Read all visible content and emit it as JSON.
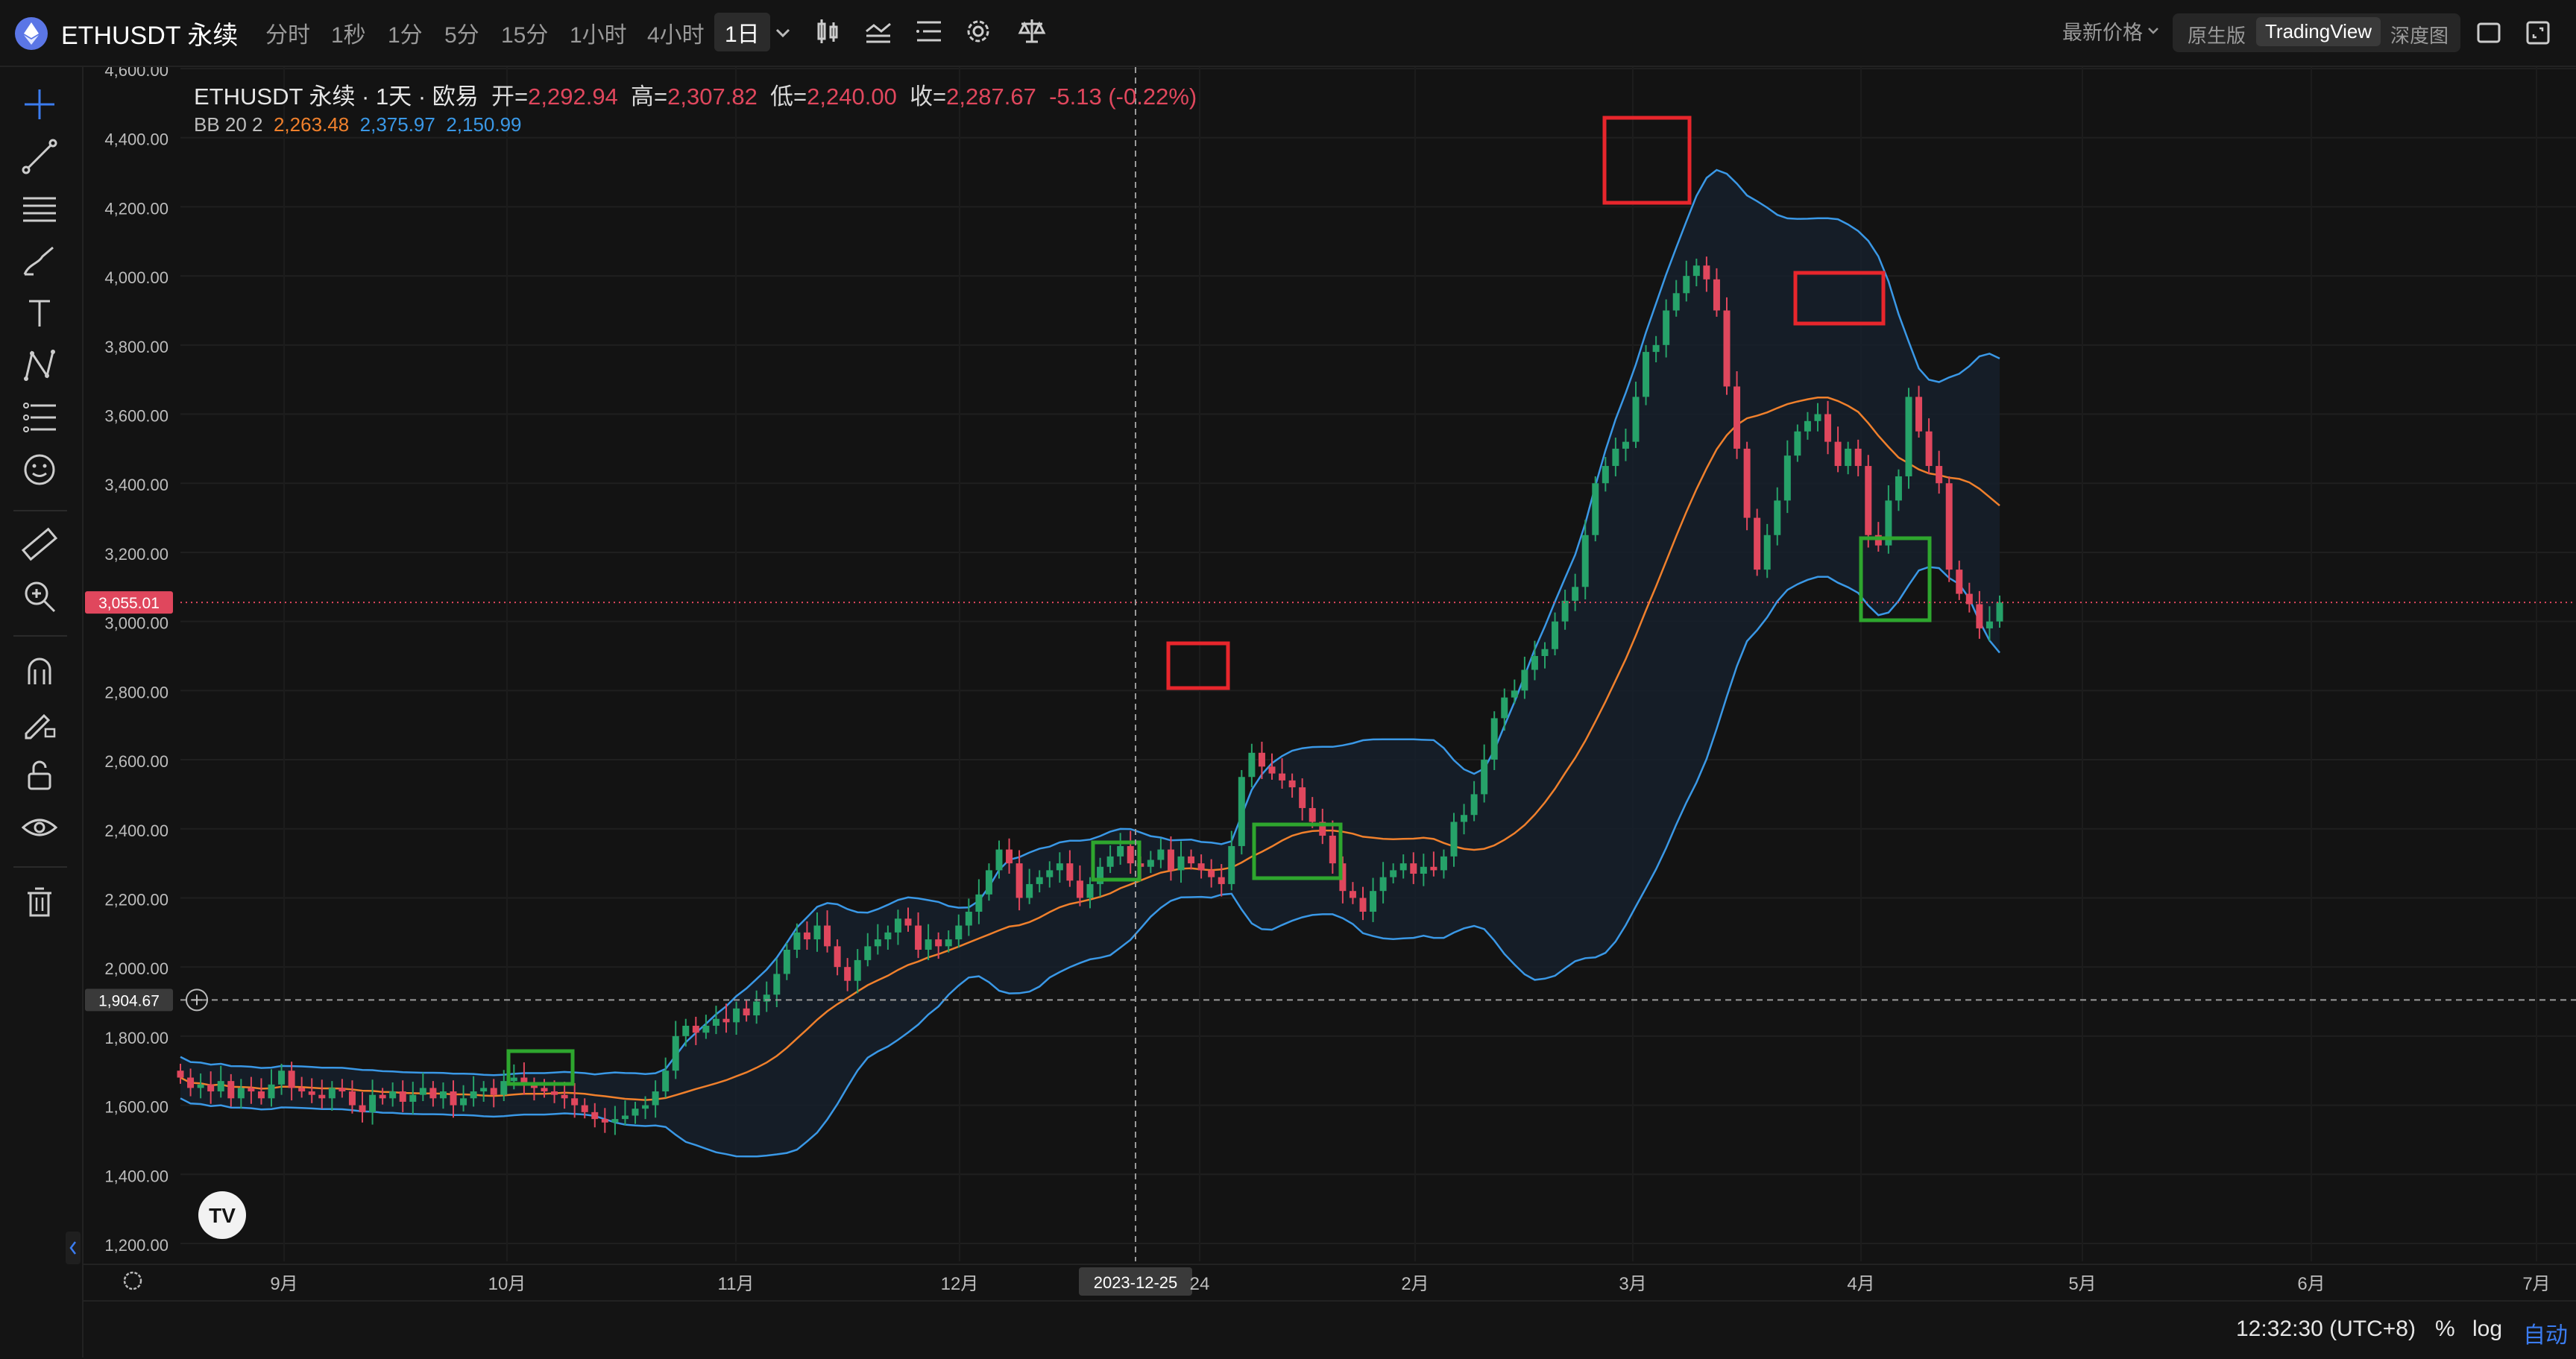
{
  "header": {
    "symbol": "ETHUSDT 永续",
    "timeframes": [
      "分时",
      "1秒",
      "1分",
      "5分",
      "15分",
      "1小时",
      "4小时",
      "1日"
    ],
    "active_timeframe": "1日",
    "price_type": "最新价格",
    "views": [
      "原生版",
      "TradingView",
      "深度图"
    ],
    "active_view": "TradingView"
  },
  "legend": {
    "title": "ETHUSDT 永续 · 1天 · 欧易",
    "open_label": "开=",
    "open": "2,292.94",
    "high_label": "高=",
    "high": "2,307.82",
    "low_label": "低=",
    "low": "2,240.00",
    "close_label": "收=",
    "close": "2,287.67",
    "change": "-5.13 (-0.22%)",
    "bb_label": "BB 20 2",
    "bb_mid": "2,263.48",
    "bb_upper": "2,375.97",
    "bb_lower": "2,150.99"
  },
  "price_axis": {
    "labels": [
      "4,600.00",
      "4,400.00",
      "4,200.00",
      "4,000.00",
      "3,800.00",
      "3,600.00",
      "3,400.00",
      "3,200.00",
      "3,000.00",
      "2,800.00",
      "2,600.00",
      "2,400.00",
      "2,200.00",
      "2,000.00",
      "1,800.00",
      "1,600.00",
      "1,400.00",
      "1,200.00"
    ],
    "last_price": "3,055.01",
    "crosshair_price": "1,904.67"
  },
  "time_axis": {
    "labels": [
      "9月",
      "10月",
      "11月",
      "12月",
      "24",
      "2月",
      "3月",
      "4月",
      "5月",
      "6月",
      "7月"
    ],
    "crosshair_date": "2023-12-25"
  },
  "bottom": {
    "clock": "12:32:30 (UTC+8)",
    "percent": "%",
    "log": "log",
    "auto": "自动"
  },
  "colors": {
    "up": "#26a269",
    "down": "#e0475d",
    "bb_mid": "#f0802c",
    "bb_band": "#3a98e6",
    "highlight_red": "#e8262c",
    "highlight_green": "#2ea62e",
    "accent_blue": "#3b7cf0"
  },
  "chart_data": {
    "type": "candlestick",
    "indicator": "BB 20 2",
    "ylim": [
      1200,
      4600
    ],
    "closes": [
      1680,
      1650,
      1660,
      1640,
      1670,
      1620,
      1650,
      1640,
      1620,
      1660,
      1700,
      1650,
      1640,
      1630,
      1620,
      1650,
      1640,
      1600,
      1580,
      1630,
      1620,
      1640,
      1610,
      1630,
      1650,
      1620,
      1640,
      1600,
      1620,
      1640,
      1650,
      1630,
      1670,
      1680,
      1660,
      1650,
      1640,
      1630,
      1620,
      1600,
      1580,
      1560,
      1550,
      1560,
      1570,
      1590,
      1600,
      1640,
      1700,
      1800,
      1830,
      1810,
      1830,
      1850,
      1840,
      1880,
      1860,
      1900,
      1920,
      1980,
      2050,
      2100,
      2080,
      2120,
      2060,
      2000,
      1960,
      2020,
      2060,
      2080,
      2100,
      2140,
      2120,
      2050,
      2080,
      2060,
      2080,
      2120,
      2160,
      2210,
      2280,
      2340,
      2300,
      2200,
      2240,
      2260,
      2280,
      2300,
      2250,
      2200,
      2240,
      2290,
      2320,
      2350,
      2300,
      2290,
      2310,
      2340,
      2280,
      2320,
      2300,
      2280,
      2260,
      2240,
      2350,
      2550,
      2620,
      2580,
      2560,
      2540,
      2520,
      2460,
      2420,
      2380,
      2300,
      2220,
      2200,
      2160,
      2220,
      2260,
      2280,
      2300,
      2270,
      2290,
      2280,
      2320,
      2420,
      2440,
      2500,
      2600,
      2720,
      2780,
      2800,
      2860,
      2900,
      2920,
      3000,
      3060,
      3100,
      3250,
      3400,
      3450,
      3500,
      3520,
      3650,
      3780,
      3800,
      3900,
      3950,
      4000,
      4030,
      3990,
      3900,
      3680,
      3500,
      3300,
      3150,
      3250,
      3350,
      3480,
      3550,
      3580,
      3600,
      3520,
      3450,
      3500,
      3450,
      3250,
      3220,
      3350,
      3420,
      3650,
      3550,
      3450,
      3400,
      3150,
      3080,
      3050,
      2980,
      3000,
      3055
    ]
  }
}
